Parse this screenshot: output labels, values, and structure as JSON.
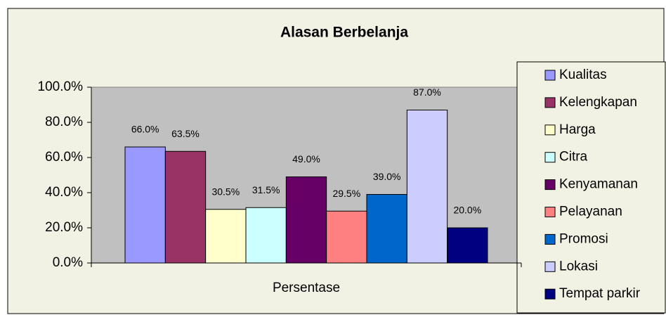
{
  "chart_data": {
    "type": "bar",
    "title": "Alasan Berbelanja",
    "categories": [
      "Persentase"
    ],
    "series": [
      {
        "name": "Kualitas",
        "color": "#9999ff",
        "values": [
          66
        ],
        "value_labels": [
          "66.0%"
        ]
      },
      {
        "name": "Kelengkapan",
        "color": "#993366",
        "values": [
          63.5
        ],
        "value_labels": [
          "63.5%"
        ]
      },
      {
        "name": "Harga",
        "color": "#ffffcc",
        "values": [
          30.5
        ],
        "value_labels": [
          "30.5%"
        ]
      },
      {
        "name": "Citra",
        "color": "#ccffff",
        "values": [
          31.5
        ],
        "value_labels": [
          "31.5%"
        ]
      },
      {
        "name": "Kenyamanan",
        "color": "#660066",
        "values": [
          49
        ],
        "value_labels": [
          "49.0%"
        ]
      },
      {
        "name": "Pelayanan",
        "color": "#ff8080",
        "values": [
          29.5
        ],
        "value_labels": [
          "29.5%"
        ]
      },
      {
        "name": "Promosi",
        "color": "#0066cc",
        "values": [
          39
        ],
        "value_labels": [
          "39.0%"
        ]
      },
      {
        "name": "Lokasi",
        "color": "#ccccff",
        "values": [
          87
        ],
        "value_labels": [
          "87.0%"
        ]
      },
      {
        "name": "Tempat parkir",
        "color": "#000080",
        "values": [
          20
        ],
        "value_labels": [
          "20.0%"
        ]
      }
    ],
    "ylim": [
      0,
      100
    ],
    "yticks": [
      {
        "value": 0,
        "label": "0.0%"
      },
      {
        "value": 20,
        "label": "20.0%"
      },
      {
        "value": 40,
        "label": "40.0%"
      },
      {
        "value": 60,
        "label": "60.0%"
      },
      {
        "value": 80,
        "label": "80.0%"
      },
      {
        "value": 100,
        "label": "100.0%"
      }
    ],
    "grid": false,
    "legend": "right"
  }
}
